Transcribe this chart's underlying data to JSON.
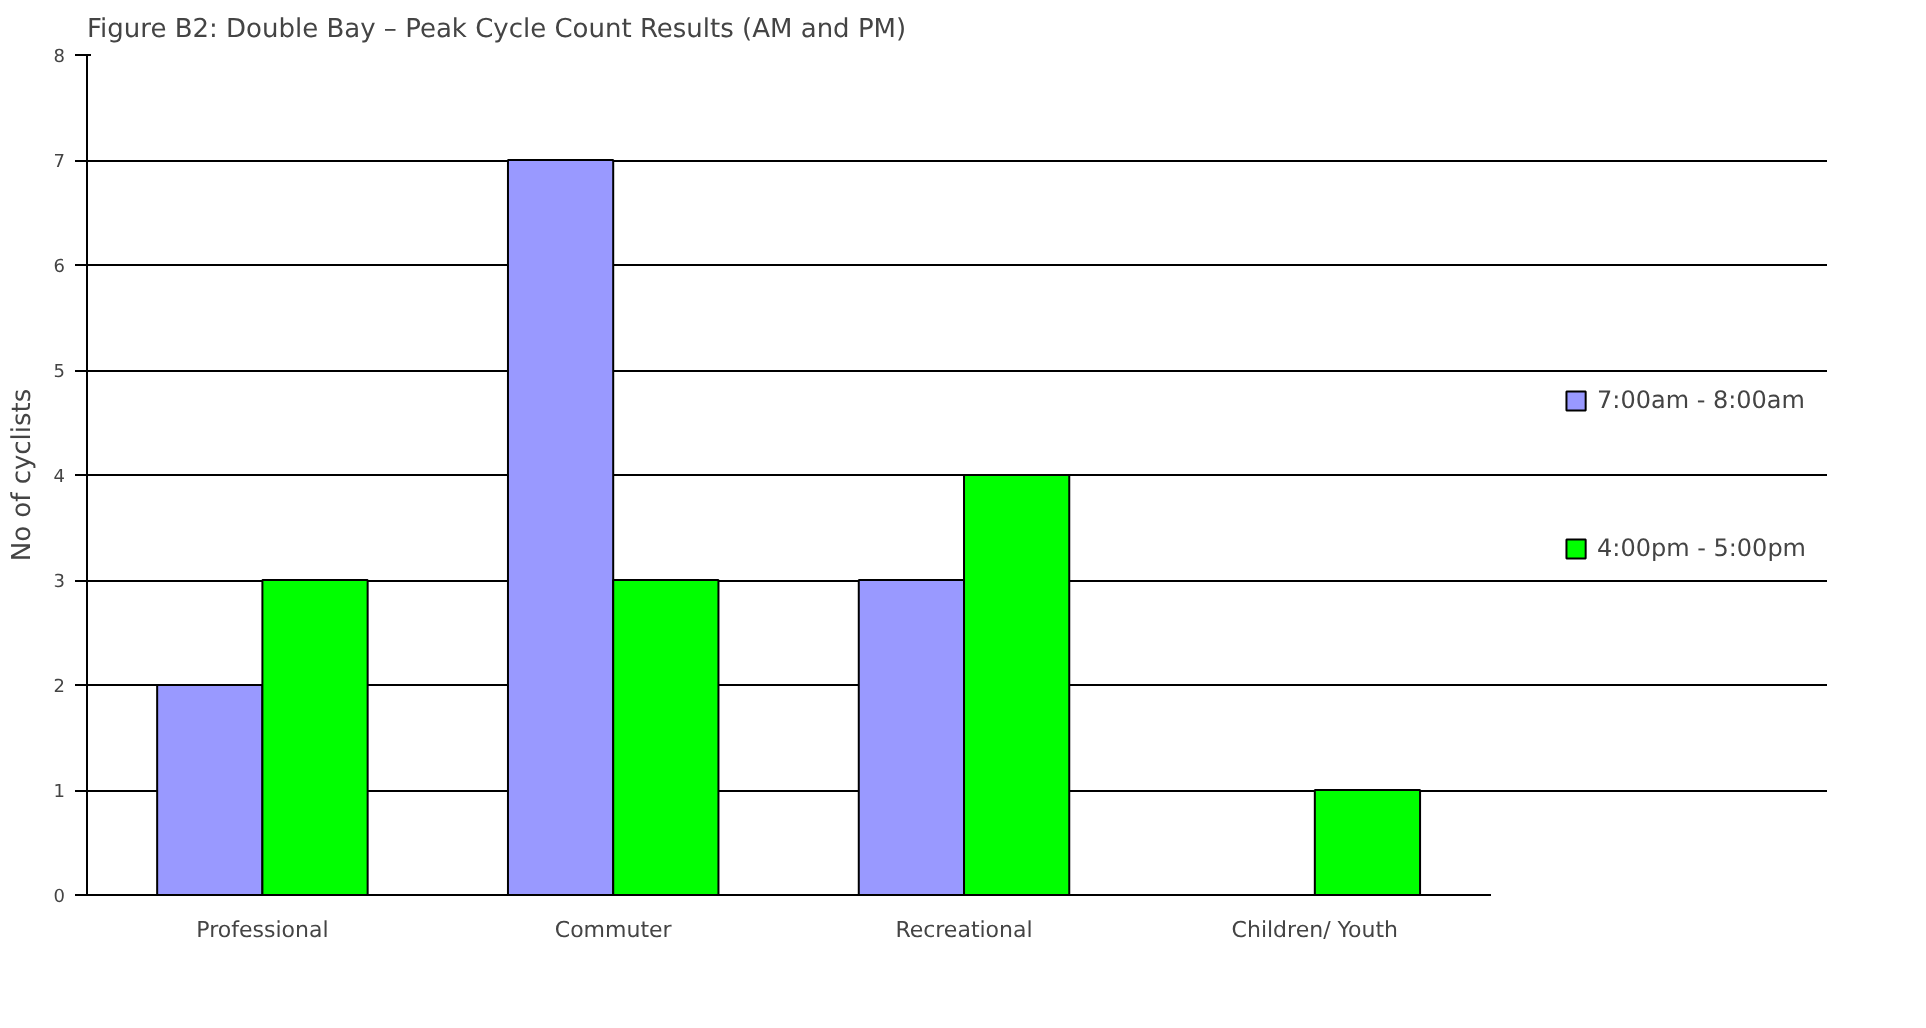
{
  "chart_data": {
    "type": "bar",
    "title": "Figure B2: Double Bay – Peak Cycle Count Results (AM and PM)",
    "ylabel": "No of cyclists",
    "categories": [
      "Professional",
      "Commuter",
      "Recreational",
      "Children/ Youth"
    ],
    "series": [
      {
        "name": "7:00am - 8:00am",
        "color": "#9999ff",
        "values": [
          2,
          7,
          3,
          null
        ]
      },
      {
        "name": "4:00pm - 5:00pm",
        "color": "#00ff00",
        "values": [
          3,
          3,
          4,
          1
        ]
      }
    ],
    "ylim": [
      0,
      8
    ],
    "yticks": [
      0,
      1,
      2,
      3,
      4,
      5,
      6,
      7,
      8
    ],
    "grid": "y",
    "legend": "right"
  }
}
